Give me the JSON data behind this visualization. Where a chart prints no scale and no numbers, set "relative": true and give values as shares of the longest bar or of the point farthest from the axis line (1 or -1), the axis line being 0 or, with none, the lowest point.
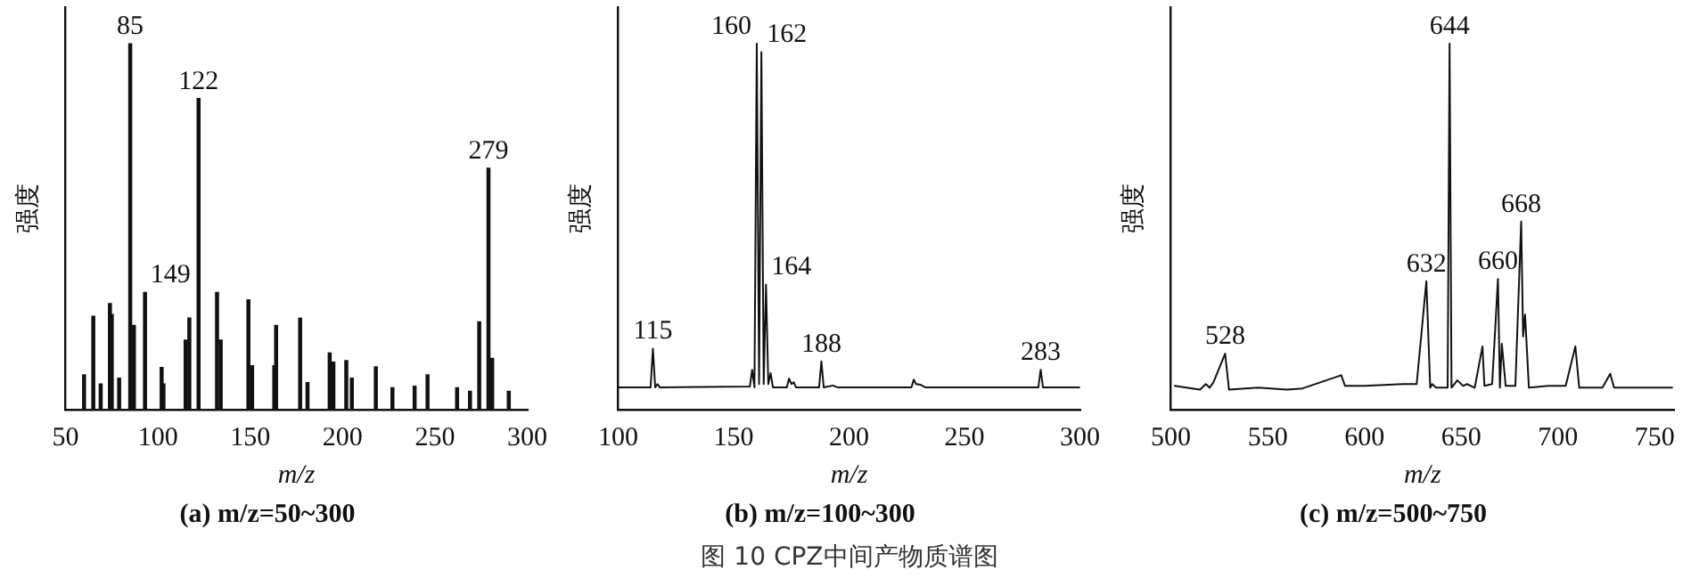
{
  "chart_data": [
    {
      "type": "bar",
      "title": "(a) m/z=50~300",
      "xlabel": "m/z",
      "ylabel": "强度",
      "relative": true,
      "color": "#111111",
      "x": [
        60,
        65,
        69,
        74,
        75,
        79,
        85,
        87,
        93,
        102,
        103,
        115,
        117,
        122,
        132,
        134,
        149,
        151,
        163,
        164,
        177,
        181,
        193,
        195,
        202,
        205,
        218,
        227,
        239,
        246,
        262,
        269,
        274,
        279,
        281,
        290
      ],
      "values": [
        0.095,
        0.255,
        0.07,
        0.29,
        0.26,
        0.086,
        1.0,
        0.23,
        0.32,
        0.115,
        0.07,
        0.19,
        0.25,
        0.85,
        0.32,
        0.19,
        0.3,
        0.12,
        0.12,
        0.23,
        0.25,
        0.074,
        0.155,
        0.13,
        0.134,
        0.086,
        0.117,
        0.06,
        0.064,
        0.095,
        0.06,
        0.05,
        0.24,
        0.66,
        0.14,
        0.05
      ],
      "xlim": [
        50,
        300
      ],
      "xticks": [
        50,
        100,
        150,
        200,
        250,
        300
      ],
      "annotations": [
        {
          "text": "85",
          "x": 85,
          "y": 1.0
        },
        {
          "text": "122",
          "x": 122,
          "y": 0.85
        },
        {
          "text": "149",
          "x": 93,
          "y": 0.32
        },
        {
          "text": "279",
          "x": 279,
          "y": 0.66
        },
        "图 10  CPZ中间产物质谱图"
      ]
    },
    {
      "type": "line",
      "title": "(b) m/z=100~300",
      "xlabel": "m/z",
      "ylabel": "强度",
      "relative": true,
      "color": "#111111",
      "x": [
        100,
        114,
        115,
        116,
        117,
        118,
        157,
        158,
        159,
        160,
        161,
        162,
        163,
        164,
        165,
        166,
        167,
        173,
        174,
        175,
        176,
        177,
        187,
        188,
        189,
        193,
        195,
        227,
        228,
        229,
        231,
        233,
        282,
        283,
        284,
        300
      ],
      "values": [
        0.061,
        0.061,
        0.167,
        0.061,
        0.07,
        0.061,
        0.063,
        0.109,
        0.061,
        1.0,
        0.07,
        0.977,
        0.07,
        0.342,
        0.07,
        0.1,
        0.061,
        0.061,
        0.085,
        0.07,
        0.075,
        0.061,
        0.061,
        0.132,
        0.061,
        0.066,
        0.061,
        0.061,
        0.082,
        0.07,
        0.068,
        0.061,
        0.061,
        0.109,
        0.061,
        0.061
      ],
      "xlim": [
        100,
        300
      ],
      "xticks": [
        100,
        150,
        200,
        250,
        300
      ],
      "annotations": [
        {
          "text": "115",
          "x": 115,
          "y": 0.167
        },
        {
          "text": "160",
          "x": 160,
          "y": 1.0
        },
        {
          "text": "162",
          "x": 162,
          "y": 0.977
        },
        {
          "text": "164",
          "x": 164,
          "y": 0.342
        },
        {
          "text": "188",
          "x": 188,
          "y": 0.132
        },
        {
          "text": "283",
          "x": 283,
          "y": 0.109
        }
      ]
    },
    {
      "type": "line",
      "title": "(c) m/z=500~750",
      "xlabel": "m/z",
      "ylabel": "强度",
      "relative": true,
      "color": "#111111",
      "x": [
        502,
        515,
        518,
        520,
        522,
        528,
        530,
        545,
        560,
        568,
        588,
        590,
        600,
        620,
        627,
        632,
        634,
        635,
        637,
        643,
        644,
        645,
        648,
        651,
        653,
        657,
        661,
        662,
        666,
        669,
        670,
        671,
        673,
        678,
        681,
        682,
        683,
        685,
        695,
        704,
        709,
        711,
        723,
        727,
        729,
        745,
        759
      ],
      "values": [
        0.065,
        0.055,
        0.07,
        0.06,
        0.075,
        0.153,
        0.055,
        0.06,
        0.055,
        0.058,
        0.094,
        0.065,
        0.065,
        0.07,
        0.07,
        0.351,
        0.06,
        0.07,
        0.06,
        0.06,
        1.0,
        0.06,
        0.08,
        0.065,
        0.07,
        0.06,
        0.173,
        0.065,
        0.07,
        0.357,
        0.06,
        0.18,
        0.065,
        0.065,
        0.514,
        0.2,
        0.26,
        0.06,
        0.065,
        0.065,
        0.173,
        0.06,
        0.06,
        0.098,
        0.06,
        0.06,
        0.06
      ],
      "xlim": [
        500,
        760
      ],
      "xticks": [
        500,
        550,
        600,
        650,
        700,
        750
      ],
      "annotations": [
        {
          "text": "528",
          "x": 528,
          "y": 0.153
        },
        {
          "text": "632",
          "x": 632,
          "y": 0.351
        },
        {
          "text": "644",
          "x": 644,
          "y": 1.0
        },
        {
          "text": "660",
          "x": 669,
          "y": 0.357
        },
        {
          "text": "668",
          "x": 681,
          "y": 0.514
        }
      ]
    }
  ]
}
